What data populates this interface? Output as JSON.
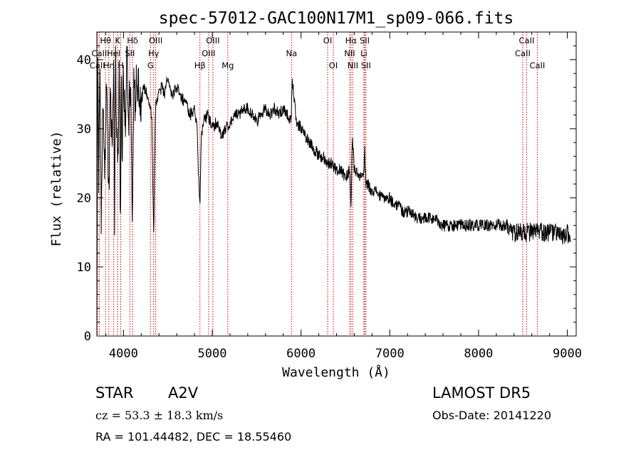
{
  "chart_data": {
    "type": "line",
    "title": "spec-57012-GAC100N17M1_sp09-066.fits",
    "xlabel": "Wavelength (Å)",
    "ylabel": "Flux (relative)",
    "xlim": [
      3700,
      9100
    ],
    "ylim": [
      0,
      44
    ],
    "xticks": [
      4000,
      5000,
      6000,
      7000,
      8000,
      9000
    ],
    "yticks": [
      0,
      10,
      20,
      30,
      40
    ],
    "grid": false,
    "line_color": "#000000",
    "marker_color": "#cc0000",
    "series": [
      {
        "x": [
          3700,
          3710,
          3720,
          3735,
          3750,
          3770,
          3790,
          3810,
          3835,
          3850,
          3870,
          3890,
          3900,
          3910,
          3935,
          3955,
          3965,
          3975,
          3985,
          4000,
          4020,
          4040,
          4060,
          4080,
          4100,
          4115,
          4130,
          4150,
          4180,
          4200,
          4230,
          4260,
          4290,
          4320,
          4340,
          4360,
          4380,
          4400,
          4430,
          4460,
          4490,
          4520,
          4560,
          4600,
          4640,
          4680,
          4720,
          4760,
          4800,
          4830,
          4850,
          4861,
          4875,
          4900,
          4950,
          5000,
          5050,
          5100,
          5150,
          5200,
          5250,
          5300,
          5350,
          5400,
          5450,
          5500,
          5550,
          5600,
          5650,
          5700,
          5750,
          5800,
          5850,
          5890,
          5900,
          5950,
          6000,
          6050,
          6100,
          6150,
          6200,
          6250,
          6300,
          6350,
          6400,
          6450,
          6500,
          6550,
          6563,
          6580,
          6600,
          6650,
          6700,
          6717,
          6731,
          6750,
          6800,
          6850,
          6900,
          6950,
          7000,
          7050,
          7100,
          7150,
          7200,
          7250,
          7300,
          7400,
          7500,
          7600,
          7700,
          7800,
          7900,
          8000,
          8100,
          8200,
          8300,
          8400,
          8500,
          8600,
          8700,
          8800,
          8900,
          8950,
          9000,
          9040
        ],
        "y": [
          2,
          40,
          22,
          40,
          16,
          35,
          24,
          38,
          18,
          36,
          28,
          38,
          15,
          39,
          22,
          40,
          12,
          38,
          26,
          39,
          30,
          41,
          32,
          38,
          18,
          36,
          34,
          37,
          35,
          34,
          36,
          35,
          34,
          31,
          14,
          33,
          34,
          35,
          36,
          35,
          37,
          36,
          35,
          36,
          35,
          34,
          33,
          32,
          33,
          30,
          22,
          19,
          29,
          31,
          32,
          30,
          31,
          29,
          30,
          31,
          32,
          32,
          33,
          33,
          32,
          31,
          32,
          33,
          32,
          33,
          32,
          33,
          32,
          31,
          37,
          31,
          30,
          29,
          28,
          27,
          26,
          26,
          25,
          25,
          24,
          24,
          23,
          24,
          19,
          29,
          24,
          23,
          23,
          27,
          22,
          22,
          21,
          21,
          20,
          20,
          20,
          19,
          19,
          18,
          18,
          18,
          17,
          17,
          17,
          16,
          16,
          16,
          16,
          16,
          16,
          16,
          16,
          15,
          15,
          15,
          15,
          15,
          15,
          14,
          15,
          14
        ],
        "noise": 0.9
      }
    ],
    "lines": [
      {
        "label": "Hθ",
        "x": 3798,
        "row": 0
      },
      {
        "label": "K",
        "x": 3934,
        "row": 0
      },
      {
        "label": "Hδ",
        "x": 4102,
        "row": 0
      },
      {
        "label": "OIII",
        "x": 4363,
        "row": 0
      },
      {
        "label": "OIII",
        "x": 5007,
        "row": 0
      },
      {
        "label": "OI",
        "x": 6300,
        "row": 0
      },
      {
        "label": "Hα",
        "x": 6563,
        "row": 0
      },
      {
        "label": "SII",
        "x": 6717,
        "row": 0
      },
      {
        "label": "CaII",
        "x": 8542,
        "row": 0
      },
      {
        "label": "CaII",
        "x": 3727,
        "row": 1
      },
      {
        "label": "HeI",
        "x": 3889,
        "row": 1
      },
      {
        "label": "SII",
        "x": 4072,
        "row": 1
      },
      {
        "label": "Hγ",
        "x": 4340,
        "row": 1
      },
      {
        "label": "OIII",
        "x": 4959,
        "row": 1
      },
      {
        "label": "Na",
        "x": 5893,
        "row": 1
      },
      {
        "label": "NII",
        "x": 6548,
        "row": 1
      },
      {
        "label": "Li",
        "x": 6708,
        "row": 1
      },
      {
        "label": "CaII",
        "x": 8498,
        "row": 1
      },
      {
        "label": "CaII",
        "x": 3706,
        "row": 2
      },
      {
        "label": "Hη",
        "x": 3835,
        "row": 2
      },
      {
        "label": "H",
        "x": 3969,
        "row": 2
      },
      {
        "label": "G",
        "x": 4304,
        "row": 2
      },
      {
        "label": "Hβ",
        "x": 4861,
        "row": 2
      },
      {
        "label": "Mg",
        "x": 5175,
        "row": 2
      },
      {
        "label": "OI",
        "x": 6364,
        "row": 2
      },
      {
        "label": "NII",
        "x": 6583,
        "row": 2
      },
      {
        "label": "SII",
        "x": 6731,
        "row": 2
      },
      {
        "label": "CaII",
        "x": 8662,
        "row": 2
      }
    ]
  },
  "info": {
    "class": "STAR",
    "subclass": "A2V",
    "survey": "LAMOST DR5",
    "cz": "cz = 53.3 ± 18.3 km/s",
    "obs_date": "Obs-Date: 20141220",
    "radec": "RA = 101.44482, DEC =  18.55460"
  }
}
